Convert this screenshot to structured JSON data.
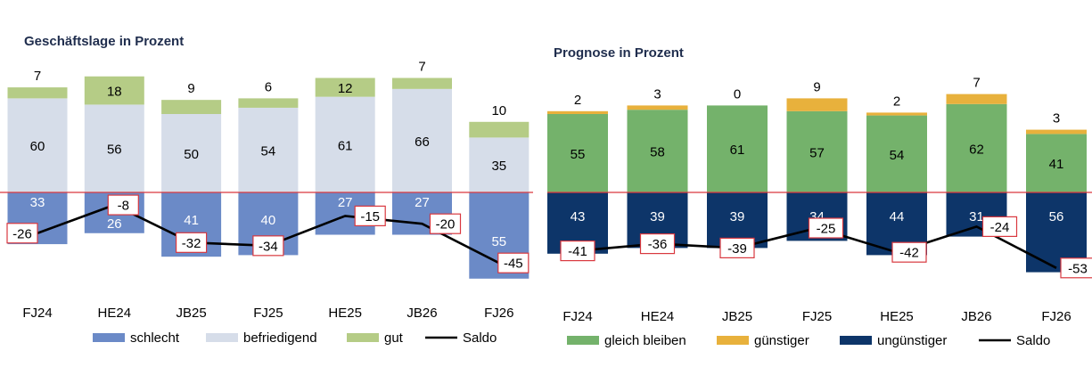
{
  "chart_data": [
    {
      "type": "bar",
      "stacked": true,
      "title": "Geschäftslage in Prozent",
      "categories": [
        "FJ24",
        "HE24",
        "JB25",
        "FJ25",
        "HE25",
        "JB26",
        "FJ26"
      ],
      "series": [
        {
          "name": "schlecht",
          "color": "#6b8ac7",
          "direction": "below",
          "values": [
            33,
            26,
            41,
            40,
            27,
            27,
            55
          ]
        },
        {
          "name": "befriedigend",
          "color": "#d6dde9",
          "direction": "above",
          "values": [
            60,
            56,
            50,
            54,
            61,
            66,
            35
          ]
        },
        {
          "name": "gut",
          "color": "#b5cc86",
          "direction": "above",
          "values": [
            7,
            18,
            9,
            6,
            12,
            7,
            10
          ]
        }
      ],
      "line": {
        "name": "Saldo",
        "color": "#000000",
        "values": [
          -26,
          -8,
          -32,
          -34,
          -15,
          -20,
          -45
        ]
      },
      "zero_line_color": "#d9383f",
      "legend": "bottom"
    },
    {
      "type": "bar",
      "stacked": true,
      "title": "Prognose in Prozent",
      "categories": [
        "FJ24",
        "HE24",
        "JB25",
        "FJ25",
        "HE25",
        "JB26",
        "FJ26"
      ],
      "series": [
        {
          "name": "gleich bleiben",
          "color": "#74b26b",
          "direction": "above",
          "values": [
            55,
            58,
            61,
            57,
            54,
            62,
            41
          ]
        },
        {
          "name": "günstiger",
          "color": "#e8b13c",
          "direction": "above",
          "values": [
            2,
            3,
            0,
            9,
            2,
            7,
            3
          ]
        },
        {
          "name": "ungünstiger",
          "color": "#0d3569",
          "direction": "below",
          "values": [
            43,
            39,
            39,
            34,
            44,
            31,
            56
          ]
        }
      ],
      "line": {
        "name": "Saldo",
        "color": "#000000",
        "values": [
          -41,
          -36,
          -39,
          -25,
          -42,
          -24,
          -53
        ]
      },
      "zero_line_color": "#d9383f",
      "legend": "bottom"
    }
  ]
}
